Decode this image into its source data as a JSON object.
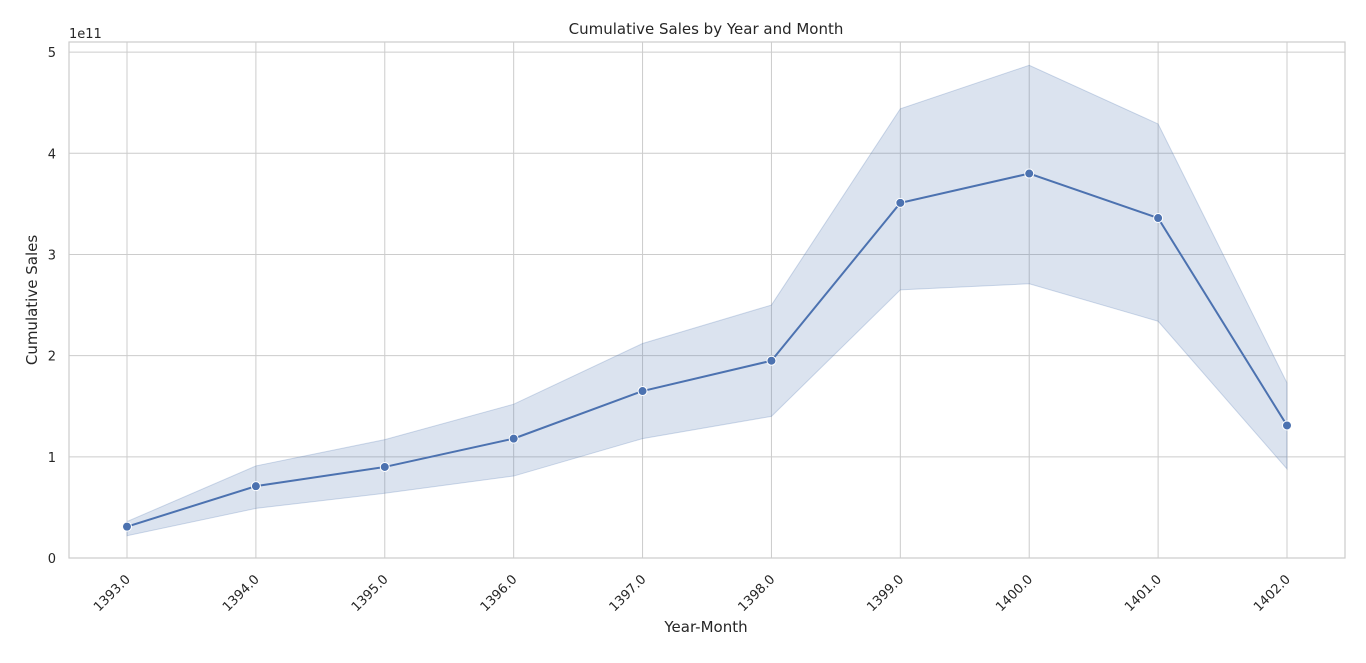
{
  "chart_data": {
    "type": "line",
    "title": "Cumulative Sales by Year and Month",
    "xlabel": "Year-Month",
    "ylabel": "Cumulative Sales",
    "y_offset_label": "1e11",
    "x": [
      1393,
      1394,
      1395,
      1396,
      1397,
      1398,
      1399,
      1400,
      1401,
      1402
    ],
    "x_tick_labels": [
      "1393.0",
      "1394.0",
      "1395.0",
      "1396.0",
      "1397.0",
      "1398.0",
      "1399.0",
      "1400.0",
      "1401.0",
      "1402.0"
    ],
    "y_ticks": [
      0,
      1,
      2,
      3,
      4,
      5
    ],
    "y_tick_labels": [
      "0",
      "1",
      "2",
      "3",
      "4",
      "5"
    ],
    "y_unit_multiplier": 100000000000.0,
    "series": [
      {
        "values": [
          0.31,
          0.71,
          0.9,
          1.18,
          1.65,
          1.95,
          3.51,
          3.8,
          3.36,
          1.31
        ],
        "ci_lower": [
          0.22,
          0.49,
          0.64,
          0.81,
          1.18,
          1.4,
          2.65,
          2.71,
          2.34,
          0.88
        ],
        "ci_upper": [
          0.36,
          0.91,
          1.17,
          1.52,
          2.12,
          2.5,
          4.44,
          4.87,
          4.29,
          1.73
        ],
        "color": "#4c72b0",
        "band_color": "#4c72b0"
      }
    ],
    "xlim": [
      1392.55,
      1402.45
    ],
    "ylim": [
      0,
      5.1
    ],
    "grid": true,
    "legend": "none"
  }
}
